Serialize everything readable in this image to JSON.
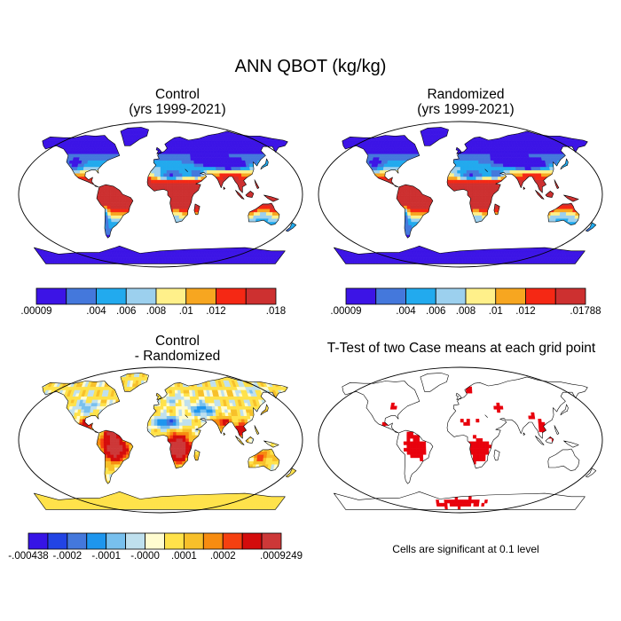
{
  "main_title": "ANN QBOT (kg/kg)",
  "panels": {
    "control": {
      "title_line1": "Control",
      "title_line2": "(yrs 1999-2021)"
    },
    "randomized": {
      "title_line1": "Randomized",
      "title_line2": "(yrs 1999-2021)"
    },
    "difference": {
      "title_line1": "Control",
      "title_line2": "- Randomized"
    },
    "ttest": {
      "title": "T-Test of two Case means at each grid point"
    }
  },
  "colorbars": {
    "control": {
      "colors": [
        "#3c14e6",
        "#4478dc",
        "#22aaee",
        "#9cd0ee",
        "#fff08a",
        "#f7a620",
        "#f52814",
        "#cd3030"
      ],
      "labels": [
        ".00009",
        ".004",
        ".006",
        ".008",
        ".01",
        ".012",
        ".018"
      ]
    },
    "randomized": {
      "colors": [
        "#3c14e6",
        "#4478dc",
        "#22aaee",
        "#9cd0ee",
        "#fff08a",
        "#f7a620",
        "#f52814",
        "#cd3030"
      ],
      "labels": [
        ".00009",
        ".004",
        ".006",
        ".008",
        ".01",
        ".012",
        ".01788"
      ]
    },
    "difference": {
      "colors": [
        "#3614e6",
        "#2244e4",
        "#4478dc",
        "#1e96ee",
        "#78c0ee",
        "#bfe0ee",
        "#fffcd0",
        "#ffe24a",
        "#f7c02a",
        "#f78c10",
        "#f54010",
        "#d40c0c",
        "#cd3838"
      ],
      "labels": [
        "-.000438",
        "-.0002",
        "-.0001",
        "-.0000",
        ".0001",
        ".0002",
        ".0009249"
      ]
    }
  },
  "ttest_note": "Cells are significant at 0.1 level",
  "colors": {
    "ocean": "#ffffff",
    "coast": "#000000",
    "significant": "#e8000c",
    "antarctica_diff": "#fff0a0"
  }
}
